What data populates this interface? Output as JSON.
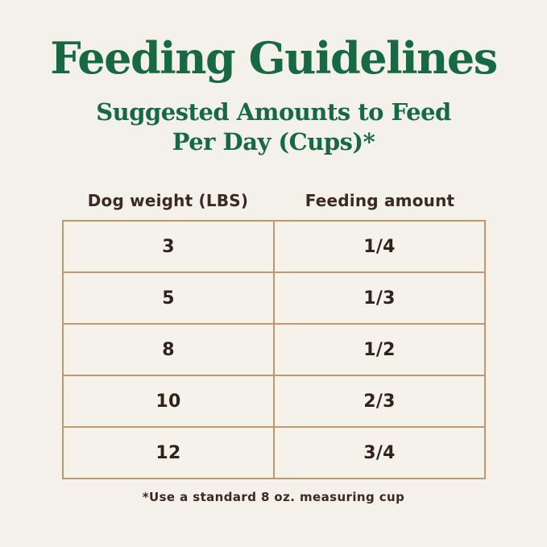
{
  "header": {
    "title": "Feeding Guidelines",
    "subtitle_line1": "Suggested Amounts to Feed",
    "subtitle_line2": "Per Day (Cups)*"
  },
  "table": {
    "columns": [
      "Dog weight (LBS)",
      "Feeding amount"
    ],
    "rows": [
      {
        "weight": "3",
        "amount": "1/4"
      },
      {
        "weight": "5",
        "amount": "1/3"
      },
      {
        "weight": "8",
        "amount": "1/2"
      },
      {
        "weight": "10",
        "amount": "2/3"
      },
      {
        "weight": "12",
        "amount": "3/4"
      }
    ]
  },
  "footer": {
    "note": "*Use a standard 8 oz. measuring cup"
  },
  "colors": {
    "background": "#F3F1EA",
    "heading_green": "#176943",
    "table_border": "#C0986B",
    "body_text": "#3A2A22"
  },
  "chart_data": {
    "type": "table",
    "title": "Feeding Guidelines",
    "subtitle": "Suggested Amounts to Feed Per Day (Cups)*",
    "columns": [
      "Dog weight (LBS)",
      "Feeding amount"
    ],
    "rows": [
      [
        "3",
        "1/4"
      ],
      [
        "5",
        "1/3"
      ],
      [
        "8",
        "1/2"
      ],
      [
        "10",
        "2/3"
      ],
      [
        "12",
        "3/4"
      ]
    ],
    "footnote": "*Use a standard 8 oz. measuring cup"
  }
}
